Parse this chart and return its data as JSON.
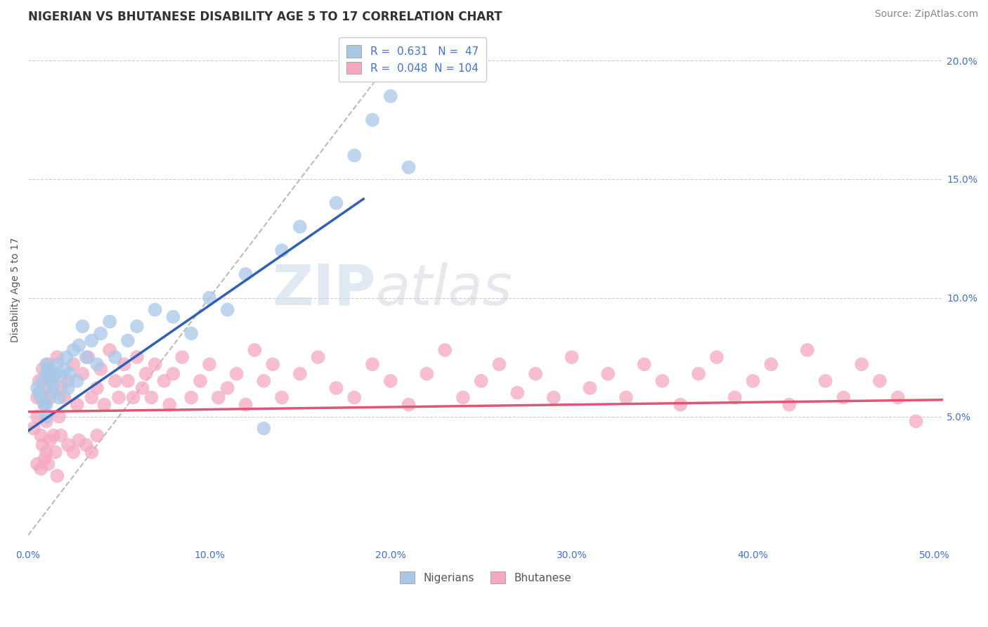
{
  "title": "NIGERIAN VS BHUTANESE DISABILITY AGE 5 TO 17 CORRELATION CHART",
  "source": "Source: ZipAtlas.com",
  "ylabel": "Disability Age 5 to 17",
  "xlim": [
    0.0,
    0.505
  ],
  "ylim": [
    -0.005,
    0.212
  ],
  "xticks": [
    0.0,
    0.1,
    0.2,
    0.3,
    0.4,
    0.5
  ],
  "xticklabels": [
    "0.0%",
    "10.0%",
    "20.0%",
    "30.0%",
    "40.0%",
    "50.0%"
  ],
  "yticks_right": [
    0.05,
    0.1,
    0.15,
    0.2
  ],
  "yticklabels_right": [
    "5.0%",
    "10.0%",
    "15.0%",
    "20.0%"
  ],
  "nigerians_R": 0.631,
  "nigerians_N": 47,
  "bhutanese_R": 0.048,
  "bhutanese_N": 104,
  "nigerians_color": "#a8c8e8",
  "bhutanese_color": "#f5a8c0",
  "nigerian_line_color": "#3060b0",
  "bhutanese_line_color": "#e05575",
  "diagonal_color": "#bbbbbb",
  "background_color": "#ffffff",
  "grid_color": "#cccccc",
  "text_color": "#4472c4",
  "legend_label_nigerians": "Nigerians",
  "legend_label_bhutanese": "Bhutanese",
  "nigerians_x": [
    0.005,
    0.006,
    0.007,
    0.008,
    0.009,
    0.01,
    0.01,
    0.01,
    0.01,
    0.011,
    0.012,
    0.013,
    0.014,
    0.015,
    0.016,
    0.017,
    0.018,
    0.02,
    0.021,
    0.022,
    0.023,
    0.025,
    0.027,
    0.028,
    0.03,
    0.032,
    0.035,
    0.038,
    0.04,
    0.045,
    0.048,
    0.055,
    0.06,
    0.07,
    0.08,
    0.09,
    0.1,
    0.11,
    0.12,
    0.14,
    0.15,
    0.17,
    0.18,
    0.19,
    0.2,
    0.21,
    0.13
  ],
  "nigerians_y": [
    0.062,
    0.06,
    0.058,
    0.065,
    0.055,
    0.068,
    0.072,
    0.055,
    0.05,
    0.07,
    0.065,
    0.06,
    0.063,
    0.068,
    0.072,
    0.058,
    0.067,
    0.07,
    0.075,
    0.062,
    0.068,
    0.078,
    0.065,
    0.08,
    0.088,
    0.075,
    0.082,
    0.072,
    0.085,
    0.09,
    0.075,
    0.082,
    0.088,
    0.095,
    0.092,
    0.085,
    0.1,
    0.095,
    0.11,
    0.12,
    0.13,
    0.14,
    0.16,
    0.175,
    0.185,
    0.155,
    0.045
  ],
  "bhutanese_x": [
    0.003,
    0.005,
    0.005,
    0.006,
    0.007,
    0.008,
    0.009,
    0.01,
    0.01,
    0.011,
    0.012,
    0.013,
    0.014,
    0.015,
    0.016,
    0.017,
    0.018,
    0.02,
    0.022,
    0.025,
    0.027,
    0.03,
    0.033,
    0.035,
    0.038,
    0.04,
    0.042,
    0.045,
    0.048,
    0.05,
    0.053,
    0.055,
    0.058,
    0.06,
    0.063,
    0.065,
    0.068,
    0.07,
    0.075,
    0.078,
    0.08,
    0.085,
    0.09,
    0.095,
    0.1,
    0.105,
    0.11,
    0.115,
    0.12,
    0.125,
    0.13,
    0.135,
    0.14,
    0.15,
    0.16,
    0.17,
    0.18,
    0.19,
    0.2,
    0.21,
    0.22,
    0.23,
    0.24,
    0.25,
    0.26,
    0.27,
    0.28,
    0.29,
    0.3,
    0.31,
    0.32,
    0.33,
    0.34,
    0.35,
    0.36,
    0.37,
    0.38,
    0.39,
    0.4,
    0.41,
    0.42,
    0.43,
    0.44,
    0.45,
    0.46,
    0.47,
    0.48,
    0.49,
    0.008,
    0.01,
    0.012,
    0.015,
    0.018,
    0.022,
    0.025,
    0.028,
    0.032,
    0.035,
    0.038,
    0.005,
    0.007,
    0.009,
    0.011,
    0.016
  ],
  "bhutanese_y": [
    0.045,
    0.058,
    0.05,
    0.065,
    0.042,
    0.07,
    0.055,
    0.048,
    0.062,
    0.072,
    0.058,
    0.065,
    0.042,
    0.068,
    0.075,
    0.05,
    0.062,
    0.058,
    0.065,
    0.072,
    0.055,
    0.068,
    0.075,
    0.058,
    0.062,
    0.07,
    0.055,
    0.078,
    0.065,
    0.058,
    0.072,
    0.065,
    0.058,
    0.075,
    0.062,
    0.068,
    0.058,
    0.072,
    0.065,
    0.055,
    0.068,
    0.075,
    0.058,
    0.065,
    0.072,
    0.058,
    0.062,
    0.068,
    0.055,
    0.078,
    0.065,
    0.072,
    0.058,
    0.068,
    0.075,
    0.062,
    0.058,
    0.072,
    0.065,
    0.055,
    0.068,
    0.078,
    0.058,
    0.065,
    0.072,
    0.06,
    0.068,
    0.058,
    0.075,
    0.062,
    0.068,
    0.058,
    0.072,
    0.065,
    0.055,
    0.068,
    0.075,
    0.058,
    0.065,
    0.072,
    0.055,
    0.078,
    0.065,
    0.058,
    0.072,
    0.065,
    0.058,
    0.048,
    0.038,
    0.035,
    0.04,
    0.035,
    0.042,
    0.038,
    0.035,
    0.04,
    0.038,
    0.035,
    0.042,
    0.03,
    0.028,
    0.032,
    0.03,
    0.025
  ],
  "title_fontsize": 12,
  "axis_label_fontsize": 10,
  "tick_fontsize": 10,
  "legend_fontsize": 11,
  "source_fontsize": 10,
  "watermark_text": "ZIPatlas",
  "watermark_zip": "ZIP",
  "watermark_atlas": "atlas"
}
